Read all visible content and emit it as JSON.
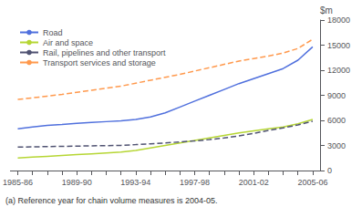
{
  "chart_data": {
    "type": "line",
    "ylabel": "$m",
    "annotations": [
      "(a) Reference year for chain volume measures is 2004-05."
    ],
    "categories": [
      "1985-86",
      null,
      null,
      null,
      "1989-90",
      null,
      null,
      null,
      "1993-94",
      null,
      null,
      null,
      "1997-98",
      null,
      null,
      null,
      "2001-02",
      null,
      null,
      null,
      "2005-06"
    ],
    "series": [
      {
        "name": "Road",
        "line_style": "solid",
        "values": [
          5000,
          5200,
          5400,
          5500,
          5650,
          5750,
          5850,
          5950,
          6100,
          6400,
          6900,
          7600,
          8300,
          9000,
          9700,
          10400,
          11000,
          11600,
          12200,
          13200,
          14800
        ]
      },
      {
        "name": "Air and space",
        "line_style": "solid",
        "values": [
          1500,
          1600,
          1700,
          1800,
          1900,
          2000,
          2100,
          2200,
          2400,
          2700,
          3000,
          3300,
          3600,
          3900,
          4200,
          4500,
          4750,
          5000,
          5200,
          5600,
          6100
        ]
      },
      {
        "name": "Rail, pipelines and other transport",
        "line_style": "dashed",
        "values": [
          2800,
          2830,
          2860,
          2890,
          2920,
          2950,
          2980,
          3010,
          3100,
          3200,
          3300,
          3420,
          3550,
          3700,
          3900,
          4150,
          4450,
          4800,
          5100,
          5450,
          5900
        ]
      },
      {
        "name": "Transport services and storage",
        "line_style": "dashed",
        "values": [
          8500,
          8700,
          8900,
          9100,
          9350,
          9600,
          9850,
          10100,
          10450,
          10800,
          11150,
          11500,
          11900,
          12300,
          12700,
          13100,
          13400,
          13700,
          14050,
          14600,
          15700
        ]
      }
    ],
    "ylim": [
      0,
      18000
    ],
    "yticks": [
      0,
      3000,
      6000,
      9000,
      12000,
      15000,
      18000
    ],
    "grid": false,
    "legend": "upper left"
  }
}
